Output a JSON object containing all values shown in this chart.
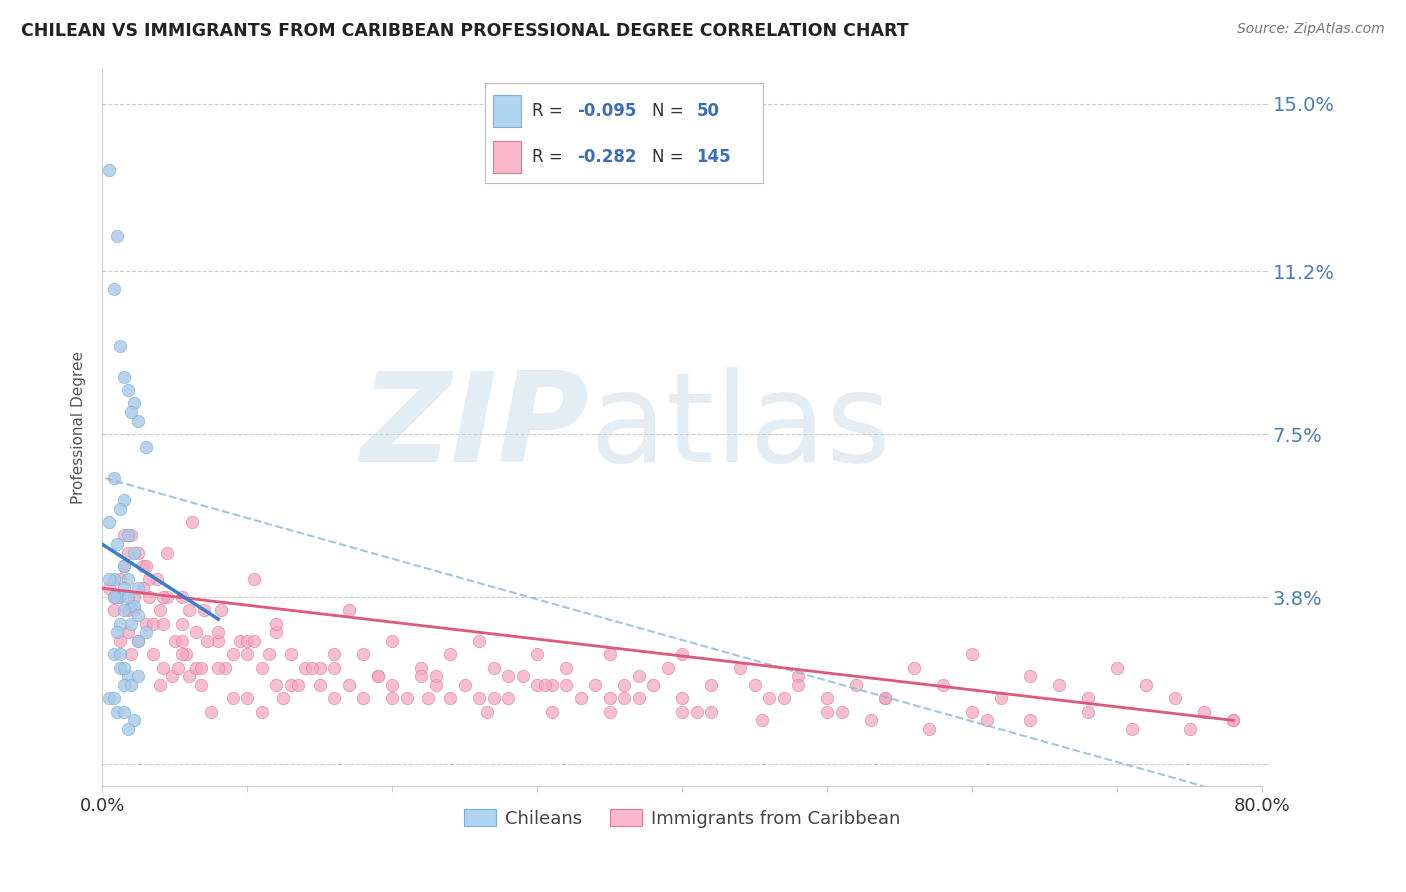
{
  "title": "CHILEAN VS IMMIGRANTS FROM CARIBBEAN PROFESSIONAL DEGREE CORRELATION CHART",
  "source": "Source: ZipAtlas.com",
  "ylabel": "Professional Degree",
  "xlim": [
    0.0,
    0.8
  ],
  "ylim": [
    -0.005,
    0.158
  ],
  "ytick_vals": [
    0.0,
    0.038,
    0.075,
    0.112,
    0.15
  ],
  "ytick_labels": [
    "",
    "3.8%",
    "7.5%",
    "11.2%",
    "15.0%"
  ],
  "chileans_label": "Chileans",
  "immigrants_label": "Immigrants from Caribbean",
  "blue_color": "#a8c8e8",
  "blue_edge": "#7aaed4",
  "pink_color": "#f4a8c0",
  "pink_edge": "#e07898",
  "blue_line_color": "#3a7ec8",
  "pink_line_color": "#e05878",
  "dash_color": "#8ab8d8",
  "background_color": "#ffffff",
  "grid_color": "#cccccc",
  "blue_scatter_x": [
    0.005,
    0.01,
    0.008,
    0.012,
    0.018,
    0.022,
    0.015,
    0.025,
    0.03,
    0.02,
    0.008,
    0.015,
    0.012,
    0.005,
    0.018,
    0.01,
    0.022,
    0.015,
    0.008,
    0.025,
    0.012,
    0.02,
    0.018,
    0.01,
    0.015,
    0.008,
    0.022,
    0.025,
    0.012,
    0.03,
    0.005,
    0.018,
    0.015,
    0.02,
    0.01,
    0.025,
    0.008,
    0.012,
    0.018,
    0.015,
    0.005,
    0.01,
    0.022,
    0.018,
    0.015,
    0.012,
    0.02,
    0.008,
    0.025,
    0.015
  ],
  "blue_scatter_y": [
    0.135,
    0.12,
    0.108,
    0.095,
    0.085,
    0.082,
    0.088,
    0.078,
    0.072,
    0.08,
    0.065,
    0.06,
    0.058,
    0.055,
    0.052,
    0.05,
    0.048,
    0.045,
    0.042,
    0.04,
    0.038,
    0.036,
    0.042,
    0.038,
    0.04,
    0.038,
    0.036,
    0.034,
    0.032,
    0.03,
    0.042,
    0.038,
    0.035,
    0.032,
    0.03,
    0.028,
    0.025,
    0.022,
    0.02,
    0.018,
    0.015,
    0.012,
    0.01,
    0.008,
    0.022,
    0.025,
    0.018,
    0.015,
    0.02,
    0.012
  ],
  "pink_scatter_x": [
    0.005,
    0.008,
    0.01,
    0.012,
    0.015,
    0.018,
    0.02,
    0.022,
    0.025,
    0.028,
    0.03,
    0.032,
    0.035,
    0.038,
    0.04,
    0.042,
    0.045,
    0.048,
    0.05,
    0.052,
    0.055,
    0.058,
    0.06,
    0.062,
    0.065,
    0.068,
    0.07,
    0.075,
    0.08,
    0.085,
    0.09,
    0.095,
    0.1,
    0.105,
    0.11,
    0.115,
    0.12,
    0.125,
    0.13,
    0.14,
    0.15,
    0.16,
    0.17,
    0.18,
    0.19,
    0.2,
    0.21,
    0.22,
    0.23,
    0.24,
    0.25,
    0.26,
    0.27,
    0.28,
    0.29,
    0.3,
    0.31,
    0.32,
    0.33,
    0.34,
    0.35,
    0.36,
    0.37,
    0.38,
    0.39,
    0.4,
    0.42,
    0.44,
    0.46,
    0.48,
    0.5,
    0.52,
    0.54,
    0.56,
    0.58,
    0.6,
    0.62,
    0.64,
    0.66,
    0.68,
    0.7,
    0.72,
    0.74,
    0.76,
    0.78,
    0.008,
    0.012,
    0.018,
    0.025,
    0.035,
    0.045,
    0.055,
    0.065,
    0.08,
    0.1,
    0.12,
    0.15,
    0.18,
    0.22,
    0.26,
    0.3,
    0.35,
    0.4,
    0.45,
    0.5,
    0.015,
    0.022,
    0.032,
    0.042,
    0.055,
    0.068,
    0.082,
    0.1,
    0.12,
    0.145,
    0.17,
    0.2,
    0.23,
    0.27,
    0.31,
    0.36,
    0.41,
    0.47,
    0.53,
    0.6,
    0.02,
    0.03,
    0.042,
    0.06,
    0.08,
    0.105,
    0.13,
    0.16,
    0.2,
    0.24,
    0.28,
    0.32,
    0.37,
    0.42,
    0.48,
    0.54,
    0.61,
    0.68,
    0.75,
    0.78,
    0.018,
    0.028,
    0.04,
    0.055,
    0.072,
    0.09,
    0.11,
    0.135,
    0.16,
    0.19,
    0.225,
    0.265,
    0.305,
    0.35,
    0.4,
    0.455,
    0.51,
    0.57,
    0.64,
    0.71
  ],
  "pink_scatter_y": [
    0.04,
    0.035,
    0.038,
    0.028,
    0.052,
    0.03,
    0.025,
    0.035,
    0.028,
    0.045,
    0.032,
    0.038,
    0.025,
    0.042,
    0.018,
    0.022,
    0.048,
    0.02,
    0.028,
    0.022,
    0.038,
    0.025,
    0.02,
    0.055,
    0.022,
    0.018,
    0.035,
    0.012,
    0.028,
    0.022,
    0.015,
    0.028,
    0.015,
    0.042,
    0.012,
    0.025,
    0.03,
    0.015,
    0.018,
    0.022,
    0.018,
    0.025,
    0.035,
    0.015,
    0.02,
    0.028,
    0.015,
    0.022,
    0.018,
    0.025,
    0.018,
    0.028,
    0.022,
    0.015,
    0.02,
    0.025,
    0.018,
    0.022,
    0.015,
    0.018,
    0.025,
    0.015,
    0.02,
    0.018,
    0.022,
    0.025,
    0.018,
    0.022,
    0.015,
    0.02,
    0.012,
    0.018,
    0.015,
    0.022,
    0.018,
    0.025,
    0.015,
    0.02,
    0.018,
    0.015,
    0.022,
    0.018,
    0.015,
    0.012,
    0.01,
    0.038,
    0.042,
    0.035,
    0.048,
    0.032,
    0.038,
    0.025,
    0.03,
    0.022,
    0.028,
    0.032,
    0.022,
    0.025,
    0.02,
    0.015,
    0.018,
    0.015,
    0.012,
    0.018,
    0.015,
    0.045,
    0.038,
    0.042,
    0.032,
    0.028,
    0.022,
    0.035,
    0.025,
    0.018,
    0.022,
    0.018,
    0.015,
    0.02,
    0.015,
    0.012,
    0.018,
    0.012,
    0.015,
    0.01,
    0.012,
    0.052,
    0.045,
    0.038,
    0.035,
    0.03,
    0.028,
    0.025,
    0.022,
    0.018,
    0.015,
    0.02,
    0.018,
    0.015,
    0.012,
    0.018,
    0.015,
    0.01,
    0.012,
    0.008,
    0.01,
    0.048,
    0.04,
    0.035,
    0.032,
    0.028,
    0.025,
    0.022,
    0.018,
    0.015,
    0.02,
    0.015,
    0.012,
    0.018,
    0.012,
    0.015,
    0.01,
    0.012,
    0.008,
    0.01,
    0.008
  ],
  "blue_line_x0": 0.0,
  "blue_line_y0": 0.05,
  "blue_line_x1": 0.08,
  "blue_line_y1": 0.033,
  "pink_line_x0": 0.0,
  "pink_line_y0": 0.04,
  "pink_line_x1": 0.78,
  "pink_line_y1": 0.01,
  "dash_line_x0": 0.002,
  "dash_line_y0": 0.065,
  "dash_line_x1": 0.76,
  "dash_line_y1": -0.005
}
